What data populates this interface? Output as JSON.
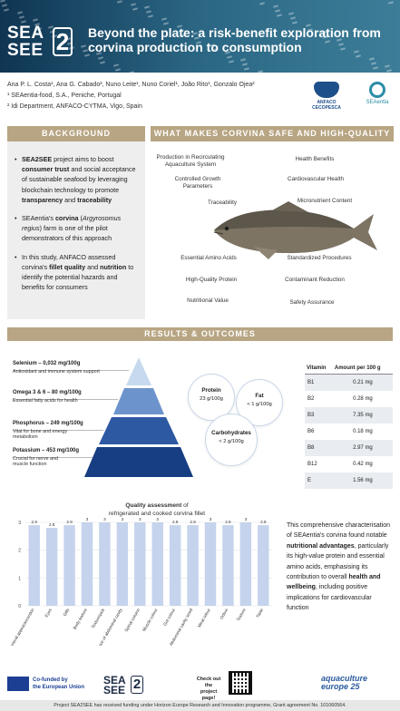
{
  "header": {
    "logo_line1": "SEA",
    "logo_line2": "SEE",
    "logo_digit": "2",
    "title": "Beyond the plate: a risk-benefit exploration from corvina production to consumption"
  },
  "authors": {
    "names": "Ana P. L. Costa¹, Ana G. Cabado², Nuno Leite¹, Nuno Coriel¹, João Rito¹, Gonzalo Ojea²",
    "affil1": "¹ SEAentia-food, S.A., Peniche, Portugal",
    "affil2": "² Idi Department, ANFACO-CYTMA, Vigo, Spain"
  },
  "partners": {
    "anfaco": "ANFACO CECOPESCA",
    "seaentia": "SEAentia"
  },
  "background": {
    "title": "BACKGROUND",
    "p1_bold1": "SEA2SEE",
    "p1_a": " project aims to boost ",
    "p1_bold2": "consumer trust",
    "p1_b": " and social acceptance of sustainable seafood by leveraging blockchain technology to promote ",
    "p1_bold3": "transparency",
    "p1_c": " and ",
    "p1_bold4": "traceability",
    "p2_a": "SEAentia's ",
    "p2_bold": "corvina",
    "p2_b": " (",
    "p2_italic": "Argyrosomus regius",
    "p2_c": ") farm is one of the pilot demonstrators of this approach",
    "p3_a": "In this study, ANFACO assessed corvina's ",
    "p3_bold1": "fillet quality",
    "p3_b": " and ",
    "p3_bold2": "nutrition",
    "p3_c": " to identify the potential hazards and benefits for consumers"
  },
  "safe": {
    "title": "WHAT MAKES CORVINA SAFE AND HIGH-QUALITY",
    "left": [
      "Production in Recirculating Aquaculture System",
      "Controlled Growth Parameters",
      "Traceability",
      "Essential Amino Acids",
      "High-Quality Protein",
      "Nutritional Value"
    ],
    "right": [
      "Health Benefits",
      "Cardiovascular Health",
      "Micronutrient Content",
      "Standardized Procedures",
      "Contaminant Reduction",
      "Safety Assurance"
    ]
  },
  "results": {
    "title": "RESULTS & OUTCOMES"
  },
  "minerals": [
    {
      "head": "Selenium – 0,032 mg/100g",
      "desc": "Antioxidant and immune system support"
    },
    {
      "head": "Omega 3 & 6 – 80 mg/100g",
      "desc": "Essential fatty acids for health"
    },
    {
      "head": "Phosphorus – 249 mg/100g",
      "desc": "Vital for bone and energy metabolism"
    },
    {
      "head": "Potassium – 453 mg/100g",
      "desc": "Crucial for nerve and muscle function"
    }
  ],
  "macros": {
    "protein_h": "Protein",
    "protein_v": "23 g/100g",
    "fat_h": "Fat",
    "fat_v": "< 1 g/100g",
    "carb_h": "Carbohydrates",
    "carb_v": "< 2 g/100g"
  },
  "vitamins": {
    "col1": "Vitamin",
    "col2": "Amount per 100 g",
    "rows": [
      {
        "name": "B1",
        "value": "0.21 mg"
      },
      {
        "name": "B2",
        "value": "0.28 mg"
      },
      {
        "name": "B3",
        "value": "7.35 mg"
      },
      {
        "name": "B6",
        "value": "0.18 mg"
      },
      {
        "name": "B8",
        "value": "2.97 mg"
      },
      {
        "name": "B12",
        "value": "0.42 mg"
      },
      {
        "name": "E",
        "value": "1.56 mg"
      }
    ]
  },
  "chart_data": {
    "type": "bar",
    "title": "Quality assessment of refrigerated and cooked corvina fillet",
    "title_bold": "Quality assessment",
    "title_rest1": " of",
    "title_rest2": "refrigerated and cooked corvina fillet",
    "categories": [
      "General appearance/skin",
      "Eyes",
      "Gills",
      "Body texture",
      "Texture/pick",
      "Appearance of abdominal cavity",
      "Spinal column",
      "Muscle colour",
      "Gut colour",
      "Abdominal cavity smell",
      "Meat odour",
      "Odour",
      "Texture",
      "Taste"
    ],
    "values": [
      2.9,
      2.8,
      2.9,
      3,
      3,
      3,
      3,
      3,
      2.9,
      2.9,
      3,
      2.9,
      3,
      2.9
    ],
    "ylim": [
      0,
      3
    ],
    "yticks": [
      0,
      1,
      2,
      3
    ],
    "color": "#c5d3ec"
  },
  "conclusion": {
    "a": "This comprehensive characterisation of SEAentia's corvina found notable ",
    "b1": "nutritional advantages",
    "b": ", particularly its high-value protein and essential amino acids, emphasising its contribution to overall ",
    "b2": "health and wellbeing",
    "c": ", including positive implications for cardiovascular function"
  },
  "footer": {
    "eu_text1": "Co-funded by",
    "eu_text2": "the European Union",
    "checkout1": "Check out the",
    "checkout2": "project page!",
    "aq1": "aquaculture",
    "aq2": "europe",
    "aq3": "25",
    "funding": "Project SEA2SEE has received funding under Horizon Europe Research and Innovation programme, Grant agreement No. 101060564."
  },
  "colors": {
    "header": "#1f4a68",
    "accent": "#b8a583",
    "pyramid": [
      "#c7d9ee",
      "#6c93cc",
      "#2d58a2",
      "#173d82"
    ]
  }
}
